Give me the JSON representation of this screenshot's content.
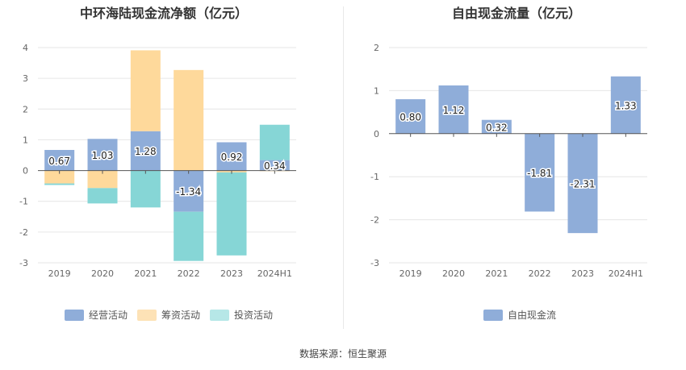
{
  "chart_data": [
    {
      "type": "bar",
      "stacked": true,
      "title": "中环海陆现金流净额（亿元）",
      "categories": [
        "2019",
        "2020",
        "2021",
        "2022",
        "2023",
        "2024H1"
      ],
      "ylim": [
        -3,
        4
      ],
      "yticks": [
        4,
        3,
        2,
        1,
        0,
        -1,
        -2,
        -3
      ],
      "grid": true,
      "legend_position": "bottom",
      "series": [
        {
          "name": "经营活动",
          "color": "#8fadd9",
          "values": [
            0.67,
            1.03,
            1.28,
            -1.34,
            0.92,
            0.34
          ]
        },
        {
          "name": "筹资活动",
          "color": "#fed99b",
          "values": [
            -0.42,
            -0.57,
            2.63,
            3.27,
            -0.06,
            -0.02
          ]
        },
        {
          "name": "投资活动",
          "color": "#86d6d6",
          "values": [
            -0.05,
            -0.5,
            -1.2,
            -1.6,
            -2.7,
            1.15
          ]
        }
      ],
      "data_labels": [
        "0.67",
        "1.03",
        "1.28",
        "-1.34",
        "0.92",
        "0.34"
      ]
    },
    {
      "type": "bar",
      "title": "自由现金流量（亿元）",
      "categories": [
        "2019",
        "2020",
        "2021",
        "2022",
        "2023",
        "2024H1"
      ],
      "ylim": [
        -3,
        2
      ],
      "yticks": [
        2,
        1,
        0,
        -1,
        -2,
        -3
      ],
      "grid": true,
      "legend_position": "bottom",
      "series": [
        {
          "name": "自由现金流",
          "color": "#8fadd9",
          "values": [
            0.8,
            1.12,
            0.32,
            -1.81,
            -2.31,
            1.33
          ]
        }
      ],
      "data_labels": [
        "0.80",
        "1.12",
        "0.32",
        "-1.81",
        "-2.31",
        "1.33"
      ]
    }
  ],
  "legend_colors": {
    "经营活动": "#8fadd9",
    "筹资活动": "#fde2b6",
    "投资活动": "#b6e7e7",
    "自由现金流": "#8fadd9"
  },
  "source": "数据来源：恒生聚源"
}
